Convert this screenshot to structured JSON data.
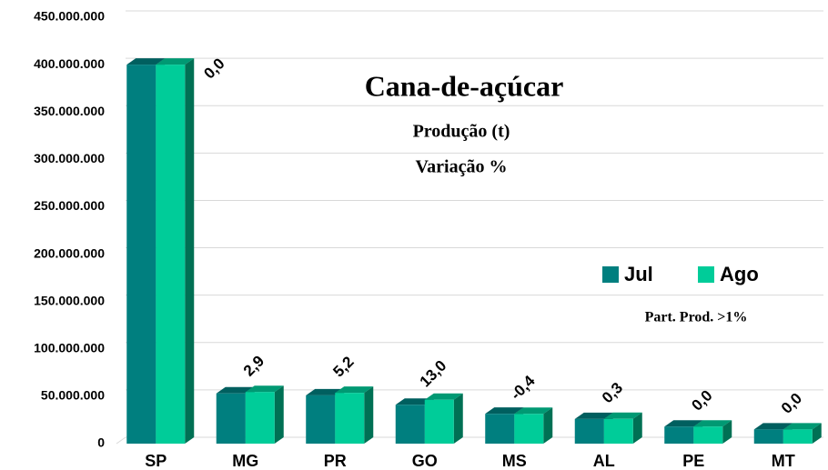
{
  "chart_data": {
    "type": "bar3d",
    "title": "Cana-de-açúcar",
    "subtitle": [
      "Produção (t)",
      "Variação %"
    ],
    "note": "Part. Prod. >1%",
    "categories": [
      "SP",
      "MG",
      "PR",
      "GO",
      "MS",
      "AL",
      "PE",
      "MT"
    ],
    "series": [
      {
        "name": "Jul",
        "color": "#007f7f",
        "values": [
          400000000,
          53000000,
          51000000,
          41000000,
          31500000,
          26000000,
          18000000,
          15000000
        ]
      },
      {
        "name": "Ago",
        "color": "#00cc99",
        "values": [
          400000000,
          54500000,
          53600000,
          46300000,
          31400000,
          26100000,
          18000000,
          15000000
        ]
      }
    ],
    "variation_labels": [
      "0,0",
      "2,9",
      "5,2",
      "13,0",
      "-0,4",
      "0,3",
      "0,0",
      "0,0"
    ],
    "ylim": [
      0,
      450000000
    ],
    "yticks": [
      {
        "value": 0,
        "label": "0"
      },
      {
        "value": 50000000,
        "label": "50.000.000"
      },
      {
        "value": 100000000,
        "label": "100.000.000"
      },
      {
        "value": 150000000,
        "label": "150.000.000"
      },
      {
        "value": 200000000,
        "label": "200.000.000"
      },
      {
        "value": 250000000,
        "label": "250.000.000"
      },
      {
        "value": 300000000,
        "label": "300.000.000"
      },
      {
        "value": 350000000,
        "label": "350.000.000"
      },
      {
        "value": 400000000,
        "label": "400.000.000"
      },
      {
        "value": 450000000,
        "label": "450.000.000"
      }
    ],
    "grid": true
  }
}
